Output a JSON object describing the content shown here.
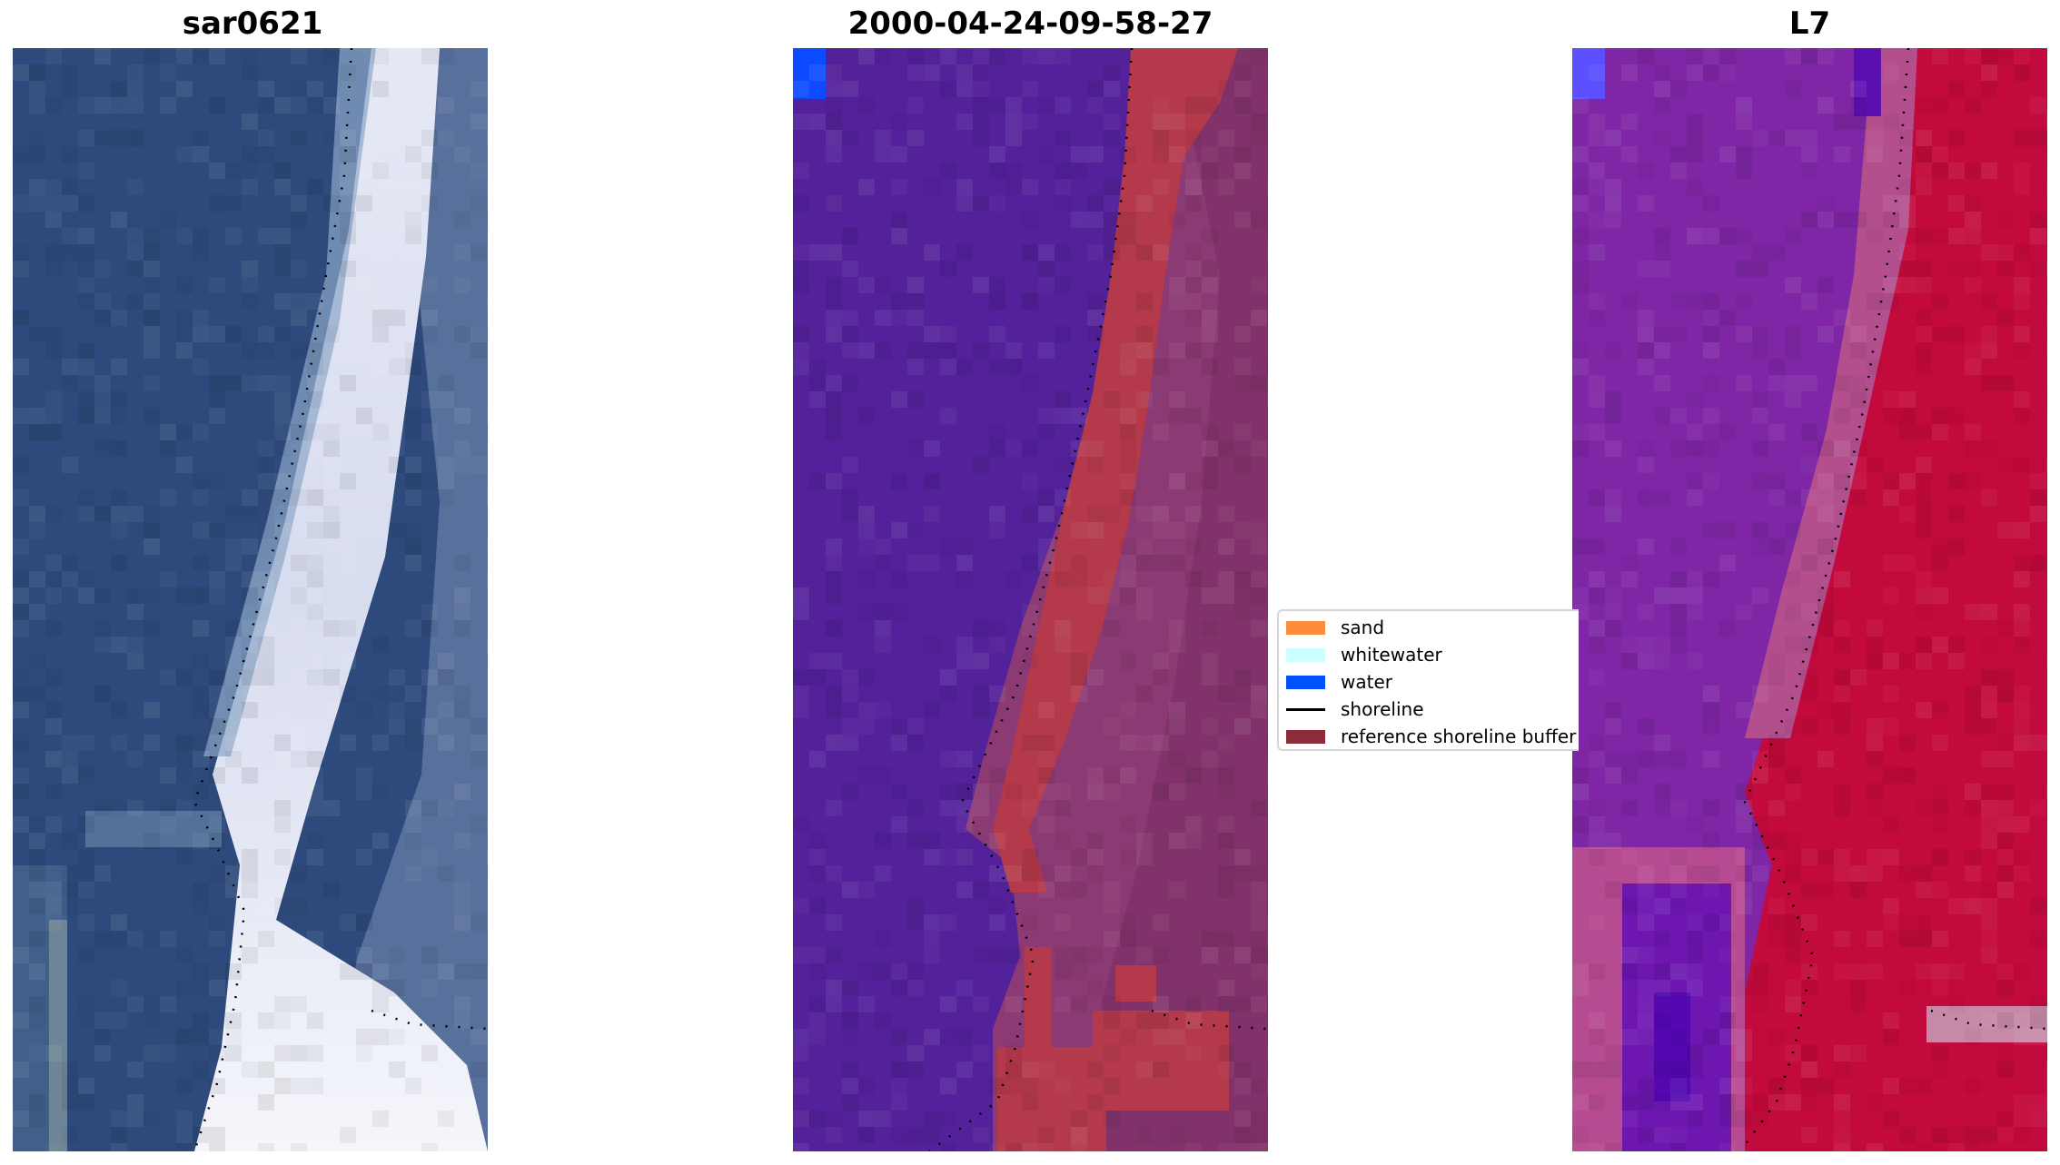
{
  "panels": [
    {
      "title": "sar0621",
      "kind": "rgb"
    },
    {
      "title": "2000-04-24-09-58-27",
      "kind": "classified"
    },
    {
      "title": "L7",
      "kind": "index"
    }
  ],
  "legend": {
    "items": [
      {
        "label": "sand",
        "color": "#ff8c3b",
        "type": "patch"
      },
      {
        "label": "whitewater",
        "color": "#ccffff",
        "type": "patch"
      },
      {
        "label": "water",
        "color": "#0052ff",
        "type": "patch"
      },
      {
        "label": "shoreline",
        "color": "#000000",
        "type": "line"
      },
      {
        "label": "reference shoreline buffer",
        "color": "#8c2c38",
        "type": "patch"
      }
    ]
  },
  "colors": {
    "rgb_water": "#2e4a7c",
    "rgb_surf": "#dfe3f2",
    "rgb_land": "#5e739e",
    "class_water": "#53219a",
    "class_water_corner": "#0c4bff",
    "class_buffer": "#b3394b",
    "class_land": "#8c3a73",
    "index_water": "#7e26a6",
    "index_land": "#c30a3c",
    "index_corner": "#5b4fff"
  }
}
